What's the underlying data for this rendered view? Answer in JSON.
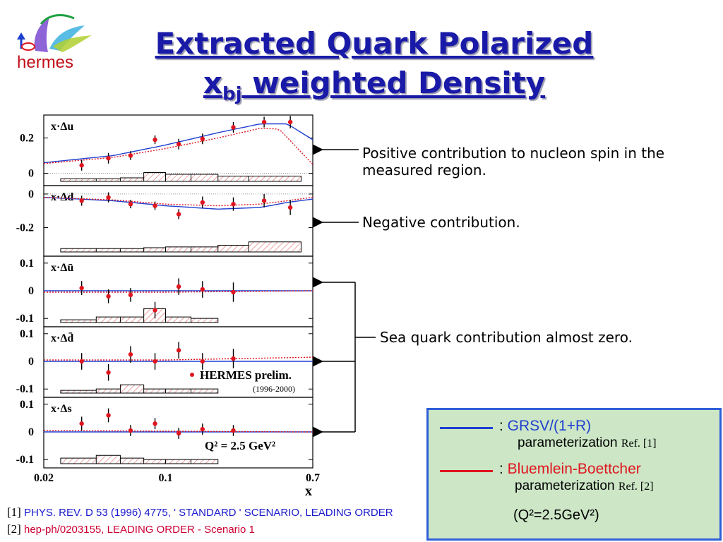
{
  "logo": {
    "text": "hermes"
  },
  "title": {
    "line1": "Extracted Quark Polarized",
    "line2_main": "x",
    "line2_sub": "bj",
    "line2_rest": " weighted Density"
  },
  "annotations": {
    "positive": "Positive contribution to nucleon spin in the measured region.",
    "negative": "Negative contribution.",
    "sea": "Sea quark contribution almost zero."
  },
  "legend": {
    "grsv": {
      "name": "GRSV/(1+R)",
      "desc": "parameterization",
      "ref": "Ref. [1]",
      "color": "#1f3fd0"
    },
    "bb": {
      "name": "Bluemlein-Boettcher",
      "desc": "parameterization",
      "ref": "Ref. [2]",
      "color": "#e0151f"
    },
    "q2": "(Q²=2.5GeV²)"
  },
  "references": {
    "r1_num": "[1]",
    "r1_text": "PHYS. REV. D 53 (1996) 4775, ' STANDARD ' SCENARIO, LEADING ORDER",
    "r2_num": "[2]",
    "r2_text": "hep-ph/0203155, LEADING ORDER - Scenario 1"
  },
  "chart_data": {
    "type": "scatter",
    "x_scale": "log",
    "xlim": [
      0.02,
      0.7
    ],
    "x_ticks": [
      "0.02",
      "0.1",
      "0.7"
    ],
    "xlabel": "x",
    "data_label": "HERMES prelim.",
    "data_period": "(1996-2000)",
    "q2_label": "Q² = 2.5 GeV²",
    "x": [
      0.033,
      0.047,
      0.063,
      0.087,
      0.119,
      0.163,
      0.245,
      0.368,
      0.52
    ],
    "panels": [
      {
        "label": "x·Δu",
        "ylim": [
          -0.07,
          0.33
        ],
        "yticks": [
          [
            "0.2",
            0.2
          ],
          [
            "0",
            0
          ]
        ],
        "points": [
          [
            0.033,
            0.045,
            0.03
          ],
          [
            0.047,
            0.085,
            0.03
          ],
          [
            0.063,
            0.1,
            0.025
          ],
          [
            0.087,
            0.19,
            0.025
          ],
          [
            0.119,
            0.165,
            0.03
          ],
          [
            0.163,
            0.195,
            0.03
          ],
          [
            0.245,
            0.26,
            0.03
          ],
          [
            0.368,
            0.29,
            0.03
          ],
          [
            0.52,
            0.29,
            0.035
          ]
        ],
        "sys": [
          0.015,
          0.015,
          0.02,
          0.05,
          0.04,
          0.04,
          0.03,
          0.03
        ],
        "grsv": [
          [
            0.02,
            0.06
          ],
          [
            0.05,
            0.1
          ],
          [
            0.1,
            0.16
          ],
          [
            0.2,
            0.23
          ],
          [
            0.35,
            0.28
          ],
          [
            0.5,
            0.28
          ],
          [
            0.7,
            0.19
          ]
        ],
        "bb": [
          [
            0.02,
            0.055
          ],
          [
            0.05,
            0.09
          ],
          [
            0.1,
            0.14
          ],
          [
            0.2,
            0.2
          ],
          [
            0.35,
            0.255
          ],
          [
            0.45,
            0.25
          ],
          [
            0.7,
            0.05
          ]
        ]
      },
      {
        "label": "x·Δd",
        "ylim": [
          -0.37,
          0.05
        ],
        "yticks": [
          [
            "0",
            0
          ],
          [
            "-0.2",
            -0.2
          ]
        ],
        "points": [
          [
            0.033,
            -0.04,
            0.03
          ],
          [
            0.047,
            -0.02,
            0.03
          ],
          [
            0.063,
            -0.06,
            0.025
          ],
          [
            0.087,
            -0.07,
            0.025
          ],
          [
            0.119,
            -0.12,
            0.03
          ],
          [
            0.163,
            -0.05,
            0.035
          ],
          [
            0.245,
            -0.06,
            0.04
          ],
          [
            0.368,
            -0.04,
            0.04
          ],
          [
            0.52,
            -0.08,
            0.045
          ]
        ],
        "sys": [
          0.02,
          0.02,
          0.02,
          0.025,
          0.03,
          0.03,
          0.04,
          0.06
        ],
        "grsv": [
          [
            0.02,
            -0.02
          ],
          [
            0.05,
            -0.04
          ],
          [
            0.1,
            -0.07
          ],
          [
            0.2,
            -0.09
          ],
          [
            0.35,
            -0.08
          ],
          [
            0.5,
            -0.05
          ],
          [
            0.7,
            -0.03
          ]
        ],
        "bb": [
          [
            0.02,
            -0.02
          ],
          [
            0.05,
            -0.035
          ],
          [
            0.1,
            -0.06
          ],
          [
            0.2,
            -0.07
          ],
          [
            0.35,
            -0.06
          ],
          [
            0.5,
            -0.04
          ],
          [
            0.7,
            -0.02
          ]
        ]
      },
      {
        "label": "x·Δū",
        "ylim": [
          -0.13,
          0.125
        ],
        "yticks": [
          [
            "0.1",
            0.1
          ],
          [
            "0",
            0
          ],
          [
            "-0.1",
            -0.1
          ]
        ],
        "points": [
          [
            0.033,
            0.01,
            0.025
          ],
          [
            0.047,
            -0.02,
            0.025
          ],
          [
            0.063,
            -0.015,
            0.025
          ],
          [
            0.087,
            -0.07,
            0.03
          ],
          [
            0.119,
            0.015,
            0.03
          ],
          [
            0.163,
            0.005,
            0.03
          ],
          [
            0.245,
            -0.005,
            0.035
          ]
        ],
        "sys": [
          0.01,
          0.02,
          0.02,
          0.05,
          0.02,
          0.015
        ],
        "grsv": [
          [
            0.02,
            0
          ],
          [
            0.7,
            0
          ]
        ],
        "bb": [
          [
            0.02,
            -0.005
          ],
          [
            0.1,
            -0.005
          ],
          [
            0.7,
            0
          ]
        ]
      },
      {
        "label": "x·Δd̄",
        "ylim": [
          -0.13,
          0.125
        ],
        "yticks": [
          [
            "0.1",
            0.1
          ],
          [
            "0",
            0
          ],
          [
            "-0.1",
            -0.1
          ]
        ],
        "points": [
          [
            0.033,
            0,
            0.03
          ],
          [
            0.047,
            -0.04,
            0.03
          ],
          [
            0.063,
            0.025,
            0.03
          ],
          [
            0.087,
            0,
            0.03
          ],
          [
            0.119,
            0.04,
            0.03
          ],
          [
            0.163,
            0,
            0.03
          ],
          [
            0.245,
            0.01,
            0.035
          ]
        ],
        "sys": [
          0.01,
          0.015,
          0.03,
          0.015,
          0.015,
          0.015
        ],
        "grsv": [
          [
            0.02,
            0
          ],
          [
            0.7,
            0
          ]
        ],
        "bb": [
          [
            0.02,
            0.005
          ],
          [
            0.1,
            0.005
          ],
          [
            0.7,
            0.015
          ]
        ]
      },
      {
        "label": "x·Δs",
        "ylim": [
          -0.13,
          0.125
        ],
        "yticks": [
          [
            "0.1",
            0.1
          ],
          [
            "0",
            0
          ],
          [
            "-0.1",
            -0.1
          ]
        ],
        "points": [
          [
            0.033,
            0.03,
            0.025
          ],
          [
            0.047,
            0.06,
            0.025
          ],
          [
            0.063,
            0.005,
            0.02
          ],
          [
            0.087,
            0.03,
            0.02
          ],
          [
            0.119,
            -0.005,
            0.02
          ],
          [
            0.163,
            0.01,
            0.02
          ],
          [
            0.245,
            0.005,
            0.02
          ]
        ],
        "sys": [
          0.02,
          0.03,
          0.02,
          0.015,
          0.015,
          0.015
        ],
        "grsv": [
          [
            0.02,
            0
          ],
          [
            0.7,
            0
          ]
        ],
        "bb": [
          [
            0.02,
            0.005
          ],
          [
            0.7,
            0
          ]
        ]
      }
    ]
  }
}
